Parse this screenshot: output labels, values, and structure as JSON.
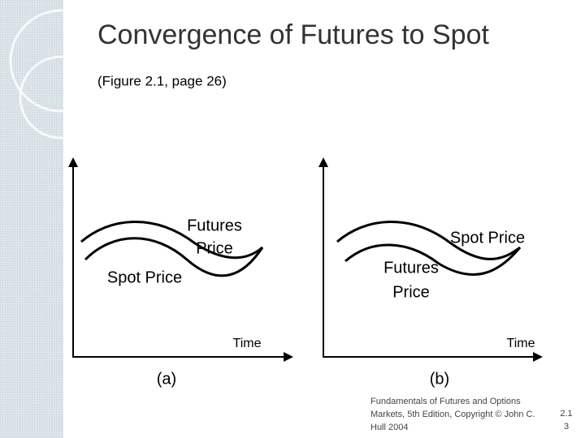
{
  "header": {
    "title": "Convergence of Futures to Spot",
    "subtitle": "(Figure  2.1, page 26)"
  },
  "panels": [
    {
      "caption": "(a)",
      "x_axis_label": "Time",
      "upper_curve_label": [
        "Futures",
        "Price"
      ],
      "lower_curve_label": [
        "Spot Price"
      ]
    },
    {
      "caption": "(b)",
      "x_axis_label": "Time",
      "upper_curve_label": [
        "Spot Price"
      ],
      "lower_curve_label": [
        "Futures",
        "Price"
      ]
    }
  ],
  "footer": {
    "credit": "Fundamentals of Futures and Options Markets, 5th Edition, Copyright © John C. Hull 2004",
    "slide_number": "2.13"
  }
}
